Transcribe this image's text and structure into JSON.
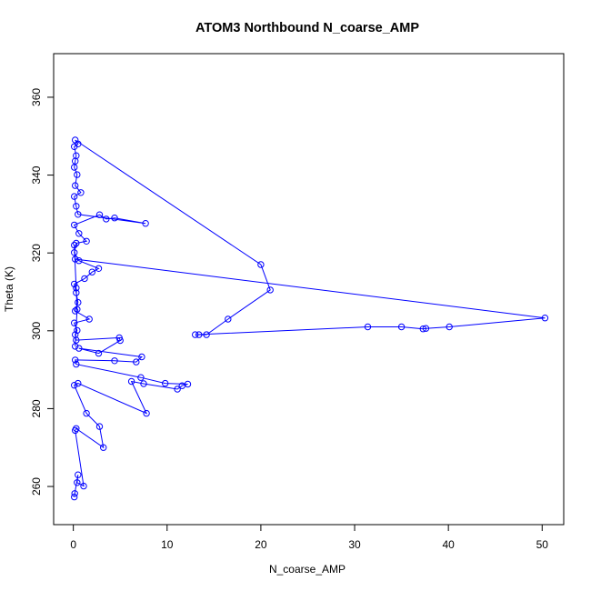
{
  "chart_data": {
    "type": "line",
    "title": "ATOM3 Northbound N_coarse_AMP",
    "xlabel": "N_coarse_AMP",
    "ylabel": "Theta (K)",
    "xlim": [
      -2.1,
      52.3
    ],
    "ylim": [
      250.2,
      371.2
    ],
    "xticks": [
      0,
      10,
      20,
      30,
      40,
      50
    ],
    "yticks": [
      260,
      280,
      300,
      320,
      340,
      360
    ],
    "grid": false,
    "legend": "none",
    "marker": "open-circle",
    "series": [
      {
        "color": "#0000ff",
        "points": [
          [
            0.1,
            257.3
          ],
          [
            0.15,
            258.2
          ],
          [
            0.5,
            263.0
          ],
          [
            0.4,
            261.0
          ],
          [
            1.1,
            260.1
          ],
          [
            0.2,
            274.4
          ],
          [
            0.3,
            274.9
          ],
          [
            3.2,
            270.0
          ],
          [
            2.8,
            275.4
          ],
          [
            1.4,
            278.8
          ],
          [
            0.1,
            286.0
          ],
          [
            0.5,
            286.5
          ],
          [
            7.8,
            278.8
          ],
          [
            6.2,
            287.0
          ],
          [
            7.5,
            286.4
          ],
          [
            11.1,
            285.0
          ],
          [
            11.6,
            285.9
          ],
          [
            12.2,
            286.3
          ],
          [
            9.8,
            286.5
          ],
          [
            7.2,
            288.0
          ],
          [
            0.3,
            291.4
          ],
          [
            0.2,
            292.5
          ],
          [
            4.4,
            292.3
          ],
          [
            6.7,
            292.0
          ],
          [
            7.3,
            293.3
          ],
          [
            0.6,
            295.5
          ],
          [
            2.7,
            294.2
          ],
          [
            5.0,
            297.5
          ],
          [
            4.9,
            298.2
          ],
          [
            0.3,
            297.6
          ],
          [
            0.2,
            299.0
          ],
          [
            0.4,
            300.1
          ],
          [
            0.1,
            302.0
          ],
          [
            1.7,
            303.0
          ],
          [
            0.2,
            305.1
          ],
          [
            0.5,
            307.3
          ],
          [
            0.3,
            309.8
          ],
          [
            0.1,
            312.0
          ],
          [
            1.2,
            313.4
          ],
          [
            2.0,
            315.1
          ],
          [
            2.7,
            316.0
          ],
          [
            0.6,
            318.0
          ],
          [
            0.1,
            320.1
          ],
          [
            0.3,
            322.5
          ],
          [
            1.4,
            323.0
          ],
          [
            0.6,
            325.0
          ],
          [
            0.1,
            327.2
          ],
          [
            2.8,
            329.8
          ],
          [
            3.5,
            328.7
          ],
          [
            4.4,
            329.0
          ],
          [
            7.7,
            327.6
          ],
          [
            0.5,
            329.9
          ],
          [
            0.3,
            332.0
          ],
          [
            0.1,
            334.5
          ],
          [
            0.8,
            335.5
          ],
          [
            0.2,
            337.3
          ],
          [
            0.4,
            340.1
          ],
          [
            0.1,
            342.0
          ],
          [
            0.2,
            343.6
          ],
          [
            0.3,
            345.0
          ],
          [
            0.1,
            347.3
          ],
          [
            0.5,
            348.0
          ],
          [
            0.2,
            349.0
          ],
          [
            20.0,
            317.0
          ],
          [
            21.0,
            310.5
          ],
          [
            16.5,
            303.0
          ],
          [
            14.2,
            299.0
          ],
          [
            13.4,
            299.0
          ],
          [
            13.0,
            299.0
          ],
          [
            31.4,
            301.0
          ],
          [
            35.0,
            301.0
          ],
          [
            37.3,
            300.5
          ],
          [
            37.6,
            300.6
          ],
          [
            40.1,
            301.0
          ],
          [
            50.3,
            303.3
          ],
          [
            0.2,
            318.4
          ],
          [
            0.1,
            322.0
          ],
          [
            0.3,
            311.0
          ],
          [
            0.4,
            305.5
          ],
          [
            0.2,
            296.0
          ]
        ]
      }
    ]
  }
}
